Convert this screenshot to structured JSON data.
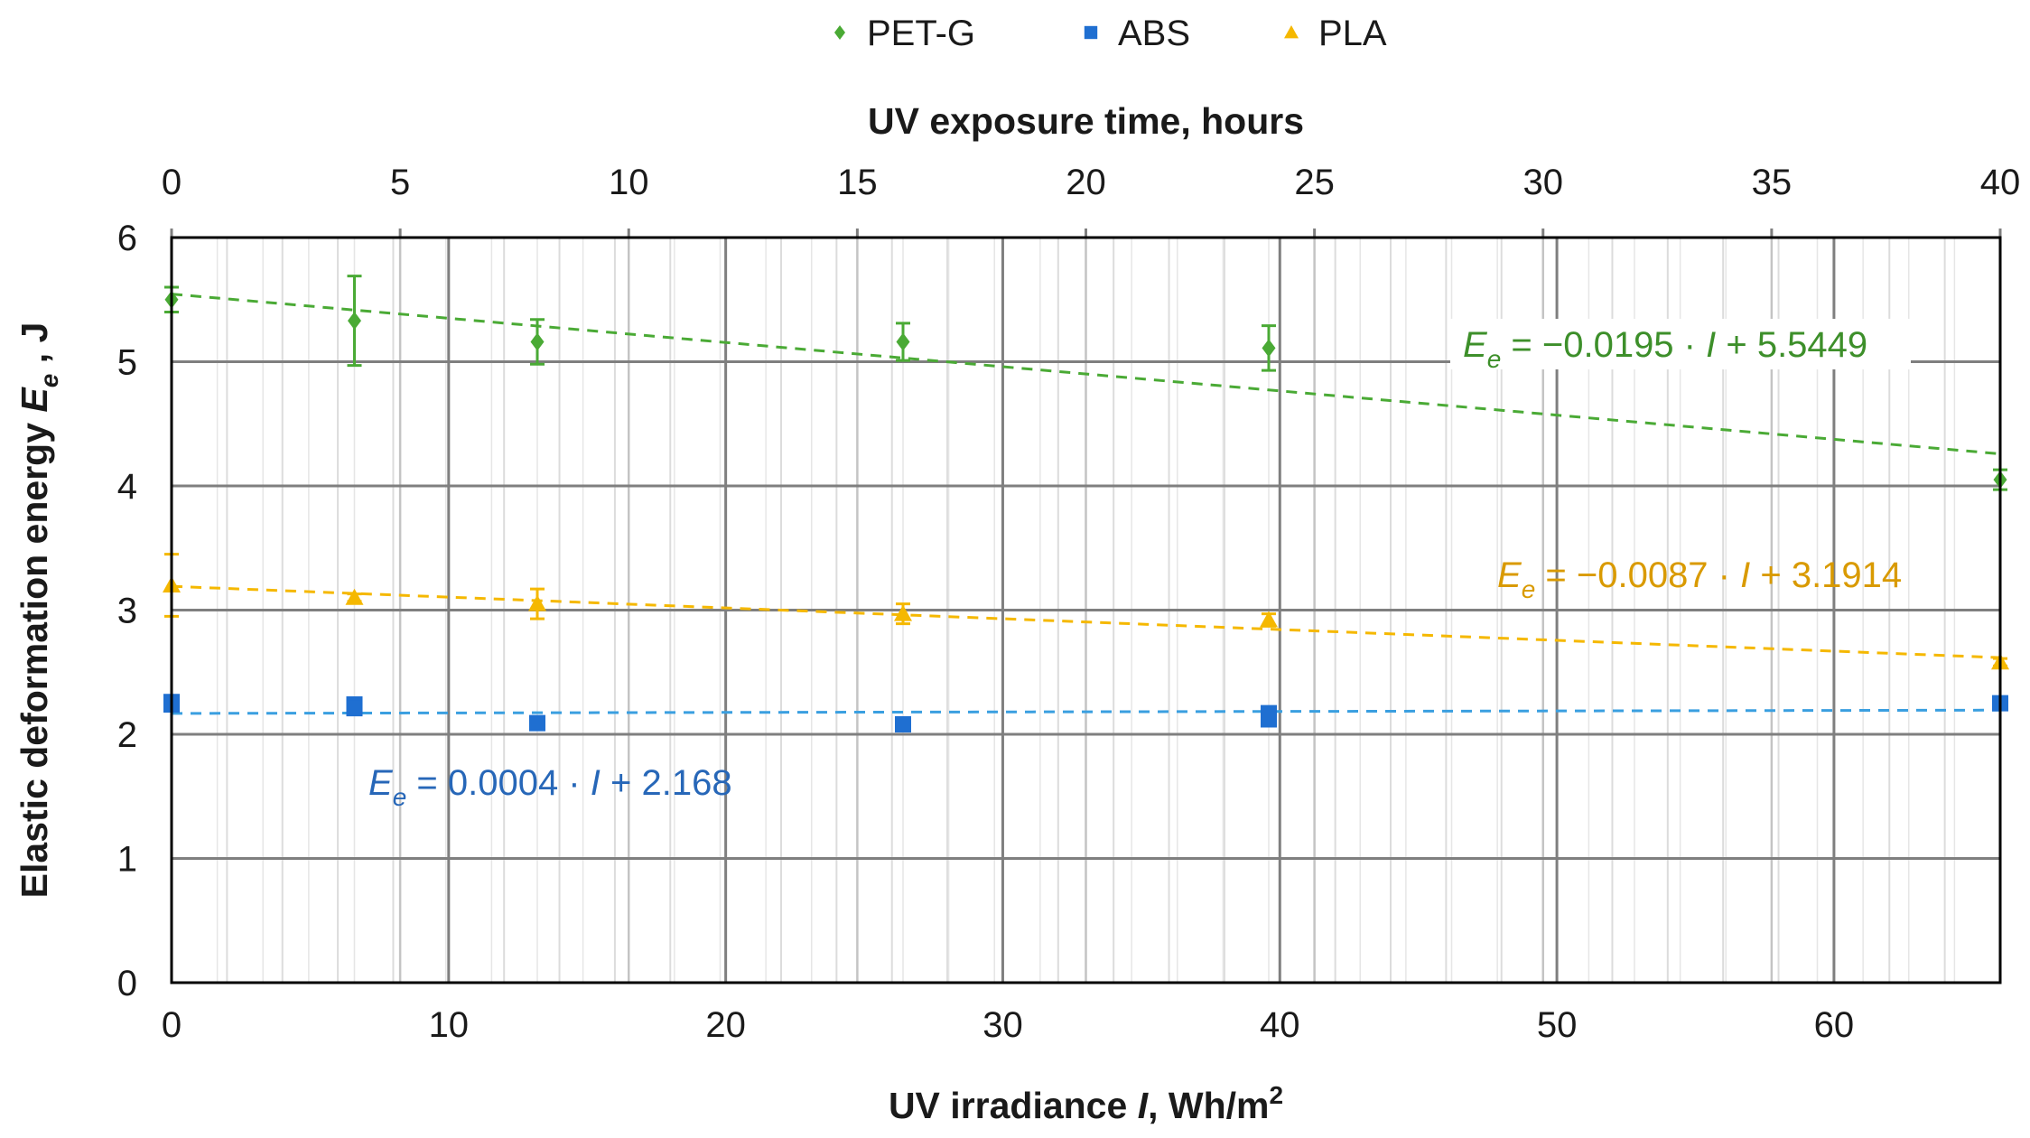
{
  "chart_data": {
    "type": "scatter",
    "legend": {
      "position": "top",
      "entries": [
        {
          "name": "PET-G",
          "marker": "diamond"
        },
        {
          "name": "ABS",
          "marker": "square"
        },
        {
          "name": "PLA",
          "marker": "triangle"
        }
      ]
    },
    "xlabel": {
      "main": "UV irradiance ",
      "var": "I",
      "unit": ", Wh/m",
      "sup": "2"
    },
    "x2label": "UV exposure time, hours",
    "ylabel": {
      "main": "Elastic deformation energy ",
      "var": "E",
      "sub": "e",
      "unit": " , J"
    },
    "xlim": [
      0,
      66
    ],
    "x2lim": [
      0,
      40
    ],
    "ylim": [
      0,
      6
    ],
    "x_ticks": [
      "0",
      "10",
      "20",
      "30",
      "40",
      "50",
      "60"
    ],
    "x2_ticks": [
      "0",
      "5",
      "10",
      "15",
      "20",
      "25",
      "30",
      "35",
      "40"
    ],
    "y_ticks": [
      "0",
      "1",
      "2",
      "3",
      "4",
      "5",
      "6"
    ],
    "grid": true,
    "colors": {
      "PET-G": "#4aaa35",
      "ABS": "#1f6fd1",
      "PLA": "#f5b800",
      "ABS_trend": "#3a9fe0",
      "PET-G_label": "#3d8f2a",
      "ABS_label": "#2767b8",
      "PLA_label": "#d99a00"
    },
    "series": [
      {
        "name": "PET-G",
        "x": [
          0,
          6.6,
          13.2,
          26.4,
          39.6,
          66
        ],
        "y": [
          5.5,
          5.33,
          5.16,
          5.16,
          5.11,
          4.05
        ],
        "err": [
          0.1,
          0.36,
          0.18,
          0.15,
          0.18,
          0.08
        ],
        "trend": {
          "slope": -0.0195,
          "intercept": 5.5449,
          "label": {
            "lhs": "E",
            "sub": "e",
            "mid": " = −0.0195 · ",
            "var": "I",
            "rhs": " + 5.5449"
          }
        }
      },
      {
        "name": "ABS",
        "x": [
          0,
          0,
          6.6,
          6.6,
          13.2,
          26.4,
          39.6,
          39.6,
          66
        ],
        "y": [
          2.26,
          2.24,
          2.24,
          2.21,
          2.09,
          2.08,
          2.17,
          2.12,
          2.25
        ],
        "err": [
          0,
          0,
          0,
          0,
          0,
          0,
          0,
          0,
          0
        ],
        "trend": {
          "slope": 0.0004,
          "intercept": 2.168,
          "label": {
            "lhs": "E",
            "sub": "e",
            "mid": " = 0.0004 · ",
            "var": "I",
            "rhs": " + 2.168"
          }
        }
      },
      {
        "name": "PLA",
        "x": [
          0,
          6.6,
          13.2,
          26.4,
          39.6,
          66
        ],
        "y": [
          3.2,
          3.1,
          3.05,
          2.97,
          2.92,
          2.58
        ],
        "err": [
          0.25,
          0.03,
          0.12,
          0.08,
          0.05,
          0.03
        ],
        "trend": {
          "slope": -0.0087,
          "intercept": 3.1914,
          "label": {
            "lhs": "E",
            "sub": "e",
            "mid": " = −0.0087 · ",
            "var": "I",
            "rhs": " + 3.1914"
          }
        }
      }
    ]
  }
}
